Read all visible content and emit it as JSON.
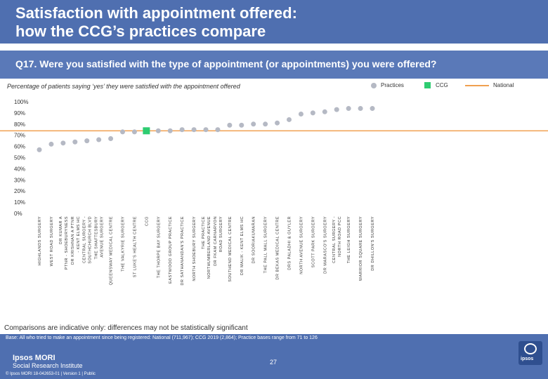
{
  "header": {
    "title_line1": "Satisfaction with appointment offered:",
    "title_line2": "how the CCG’s practices compare"
  },
  "question": "Q17. Were you satisfied with the type of appointment (or appointments) you were offered?",
  "subtitle": "Percentage of patients saying ‘yes’ they were satisfied with the appointment offered",
  "legend": {
    "practices": "Practices",
    "ccg": "CCG",
    "national": "National"
  },
  "colors": {
    "practice": "#b5b9c4",
    "ccg": "#2ecc71",
    "national": "#f0a050",
    "header": "#4f6fb0"
  },
  "chart_data": {
    "type": "scatter",
    "title": "Percentage of patients saying ‘yes’ they were satisfied with the appointment offered",
    "y_ticks": [
      "100%",
      "90%",
      "80%",
      "70%",
      "60%",
      "50%",
      "40%",
      "30%",
      "20%",
      "10%",
      "0%"
    ],
    "ylim": [
      0,
      100
    ],
    "national": 74,
    "categories": [
      "HIGHLANDS SURGERY",
      "WEST ROAD SURGERY",
      "DR KUMAR A PTNR - SHOEBURYNESS",
      "DR KRISHNAN A PTNR - KENT ELMS HC",
      "CENTRAL SURGERY - SOUTHCHURCH BLVD",
      "THE SHAFTESBURY AVENUE SURGERY",
      "QUEENSWAY MEDICAL CENTRE",
      "THE VALKYRIE SURGERY",
      "ST LUKE'S HEALTH CENTRE",
      "CCG",
      "THE THORPE BAY SURGERY",
      "EASTWOOD GROUP PRACTICE",
      "DR SATHANANDAN'S PRACTICE",
      "NORTH SHOEBURY SURGERY",
      "THE PRACTICE NORTHUMBERLAND AVENUE",
      "DR FKAM CARNARVON ROAD SURGERY",
      "SOUTHEND MEDICAL CENTRE",
      "DR MALIK - KENT ELMS HC",
      "DR SOORIAKUMARAN",
      "THE PALL MALL SURGERY",
      "DR BEKAS MEDICAL CENTRE",
      "DRS PALADHI & GUYLER",
      "NORTH AVENUE SURGERY",
      "SCOTT PARK SURGERY",
      "DR MARASCO'S SURGERY",
      "CENTRAL SURGERY - NORTH ROAD PCC",
      "THE LEIGH SURGERY",
      "WARRIOR SQUARE SURGERY",
      "DR DHILLON'S SURGERY"
    ],
    "values": [
      57,
      62,
      63,
      64,
      65,
      66,
      67,
      73,
      73,
      74,
      74,
      74,
      75,
      75,
      75,
      75,
      79,
      79,
      80,
      80,
      81,
      84,
      89,
      90,
      91,
      93,
      94,
      94,
      94
    ],
    "kinds": [
      "p",
      "p",
      "p",
      "p",
      "p",
      "p",
      "p",
      "p",
      "p",
      "ccg",
      "p",
      "p",
      "p",
      "p",
      "p",
      "p",
      "p",
      "p",
      "p",
      "p",
      "p",
      "p",
      "p",
      "p",
      "p",
      "p",
      "p",
      "p",
      "p"
    ]
  },
  "comparisons": "Comparisons are indicative only: differences may not be statistically significant",
  "footer": {
    "base": "Base: All who tried to make an appointment since being registered: National (711,967); CCG 2019 (2,864); Practice bases range from 71 to 126",
    "logo_line1": "Ipsos MORI",
    "logo_line2": "Social Research Institute",
    "page_number": "27",
    "copyright": "© Ipsos MORI    18-042653-01 | Version 1 | Public",
    "badge": "ipsos"
  }
}
